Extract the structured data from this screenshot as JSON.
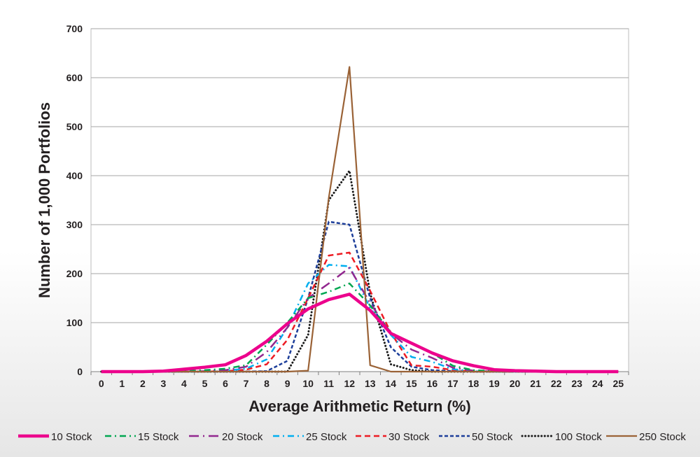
{
  "chart_data": {
    "type": "line",
    "title": "",
    "xlabel": "Average Arithmetic Return (%)",
    "ylabel": "Number of 1,000 Portfolios",
    "ylim": [
      0,
      700
    ],
    "yticks": [
      0,
      100,
      200,
      300,
      400,
      500,
      600,
      700
    ],
    "categories": [
      "0",
      "1",
      "2",
      "3",
      "4",
      "5",
      "6",
      "7",
      "8",
      "9",
      "10",
      "11",
      "12",
      "13",
      "14",
      "15",
      "16",
      "17",
      "18",
      "19",
      "20",
      "21",
      "22",
      "23",
      "24",
      "25"
    ],
    "grid": "horizontal",
    "legend": "bottom",
    "series": [
      {
        "name": "10 Stock",
        "color": "#ec008c",
        "dash": "solid-thick",
        "values": [
          0,
          0,
          0,
          1,
          5,
          9,
          14,
          33,
          62,
          98,
          128,
          147,
          158,
          125,
          78,
          58,
          38,
          22,
          12,
          4,
          2,
          1,
          0,
          0,
          0,
          0
        ]
      },
      {
        "name": "15 Stock",
        "color": "#00a651",
        "dash": "dash-dot",
        "values": [
          0,
          0,
          0,
          0,
          1,
          3,
          6,
          13,
          55,
          100,
          150,
          163,
          180,
          135,
          80,
          58,
          38,
          12,
          3,
          1,
          0,
          0,
          0,
          0,
          0,
          0
        ]
      },
      {
        "name": "20 Stock",
        "color": "#92278f",
        "dash": "long-dash-dot",
        "values": [
          0,
          0,
          0,
          0,
          0,
          1,
          3,
          10,
          40,
          90,
          150,
          180,
          212,
          140,
          78,
          45,
          28,
          8,
          2,
          0,
          0,
          0,
          0,
          0,
          0,
          0
        ]
      },
      {
        "name": "25 Stock",
        "color": "#00aeef",
        "dash": "dash-dot",
        "values": [
          0,
          0,
          0,
          0,
          0,
          0,
          2,
          6,
          25,
          90,
          180,
          218,
          215,
          130,
          75,
          30,
          20,
          5,
          1,
          0,
          0,
          0,
          0,
          0,
          0,
          0
        ]
      },
      {
        "name": "30 Stock",
        "color": "#ed1c24",
        "dash": "dash",
        "values": [
          0,
          0,
          0,
          0,
          0,
          0,
          1,
          4,
          15,
          65,
          150,
          237,
          243,
          165,
          80,
          13,
          10,
          3,
          0,
          0,
          0,
          0,
          0,
          0,
          0,
          0
        ]
      },
      {
        "name": "50 Stock",
        "color": "#1d3e9a",
        "dash": "short-dash",
        "values": [
          0,
          0,
          0,
          0,
          0,
          0,
          0,
          0,
          1,
          22,
          150,
          306,
          300,
          150,
          50,
          10,
          3,
          1,
          0,
          0,
          0,
          0,
          0,
          0,
          0,
          0
        ]
      },
      {
        "name": "100 Stock",
        "color": "#1a1a1a",
        "dash": "dot",
        "values": [
          0,
          0,
          0,
          0,
          0,
          0,
          0,
          0,
          0,
          0,
          75,
          350,
          410,
          160,
          15,
          3,
          0,
          0,
          0,
          0,
          0,
          0,
          0,
          0,
          0,
          0
        ]
      },
      {
        "name": "250 Stock",
        "color": "#9a6236",
        "dash": "solid",
        "values": [
          0,
          0,
          0,
          0,
          0,
          0,
          0,
          0,
          0,
          0,
          2,
          355,
          622,
          13,
          0,
          0,
          0,
          0,
          0,
          0,
          0,
          0,
          0,
          0,
          0,
          0
        ]
      }
    ]
  }
}
